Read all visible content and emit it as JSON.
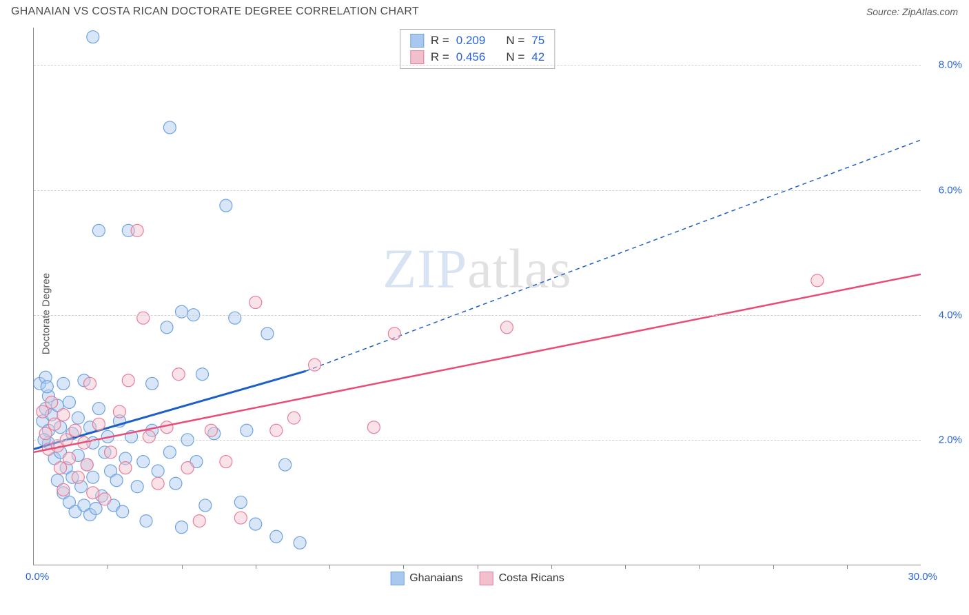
{
  "title": "GHANAIAN VS COSTA RICAN DOCTORATE DEGREE CORRELATION CHART",
  "source_label": "Source: ZipAtlas.com",
  "y_axis_label": "Doctorate Degree",
  "watermark": {
    "part1": "ZIP",
    "part2": "atlas"
  },
  "chart": {
    "type": "scatter",
    "xlim": [
      0,
      30
    ],
    "ylim": [
      0,
      8.6
    ],
    "x_label_start": "0.0%",
    "x_label_end": "30.0%",
    "x_ticks_count": 12,
    "y_gridlines": [
      {
        "value": 2.0,
        "label": "2.0%"
      },
      {
        "value": 4.0,
        "label": "4.0%"
      },
      {
        "value": 6.0,
        "label": "6.0%"
      },
      {
        "value": 8.0,
        "label": "8.0%"
      }
    ],
    "background_color": "#ffffff",
    "grid_color": "#d0d0d0",
    "axis_color": "#888888",
    "tick_label_color": "#2962d9",
    "marker_radius": 9,
    "marker_stroke_width": 1.2,
    "marker_fill_opacity": 0.45,
    "series": [
      {
        "name": "Ghanaians",
        "fill": "#a9c8ef",
        "stroke": "#6da3e0",
        "points": [
          [
            0.2,
            2.9
          ],
          [
            0.3,
            2.3
          ],
          [
            0.4,
            2.5
          ],
          [
            0.4,
            3.0
          ],
          [
            0.5,
            1.95
          ],
          [
            0.5,
            2.7
          ],
          [
            0.5,
            2.15
          ],
          [
            0.6,
            2.4
          ],
          [
            0.7,
            1.7
          ],
          [
            0.8,
            2.55
          ],
          [
            0.8,
            1.35
          ],
          [
            0.9,
            2.2
          ],
          [
            0.9,
            1.8
          ],
          [
            1.0,
            2.9
          ],
          [
            1.0,
            1.15
          ],
          [
            1.1,
            1.55
          ],
          [
            1.2,
            2.6
          ],
          [
            1.2,
            1.0
          ],
          [
            1.3,
            2.1
          ],
          [
            1.3,
            1.4
          ],
          [
            1.4,
            0.85
          ],
          [
            1.5,
            2.35
          ],
          [
            1.5,
            1.75
          ],
          [
            1.6,
            1.25
          ],
          [
            1.7,
            2.95
          ],
          [
            1.7,
            0.95
          ],
          [
            1.8,
            1.6
          ],
          [
            1.9,
            2.2
          ],
          [
            1.9,
            0.8
          ],
          [
            2.0,
            1.95
          ],
          [
            2.0,
            1.4
          ],
          [
            2.1,
            0.9
          ],
          [
            2.2,
            2.5
          ],
          [
            2.3,
            1.1
          ],
          [
            2.4,
            1.8
          ],
          [
            2.5,
            2.05
          ],
          [
            2.6,
            1.5
          ],
          [
            2.7,
            0.95
          ],
          [
            2.8,
            1.35
          ],
          [
            2.9,
            2.3
          ],
          [
            3.0,
            0.85
          ],
          [
            3.1,
            1.7
          ],
          [
            3.3,
            2.05
          ],
          [
            3.5,
            1.25
          ],
          [
            3.7,
            1.65
          ],
          [
            3.8,
            0.7
          ],
          [
            4.0,
            2.9
          ],
          [
            4.0,
            2.15
          ],
          [
            4.2,
            1.5
          ],
          [
            4.5,
            3.8
          ],
          [
            4.6,
            1.8
          ],
          [
            4.8,
            1.3
          ],
          [
            5.0,
            0.6
          ],
          [
            5.2,
            2.0
          ],
          [
            5.4,
            4.0
          ],
          [
            5.5,
            1.65
          ],
          [
            5.7,
            3.05
          ],
          [
            5.8,
            0.95
          ],
          [
            6.1,
            2.1
          ],
          [
            6.5,
            5.75
          ],
          [
            6.8,
            3.95
          ],
          [
            7.0,
            1.0
          ],
          [
            7.2,
            2.15
          ],
          [
            7.5,
            0.65
          ],
          [
            7.9,
            3.7
          ],
          [
            8.2,
            0.45
          ],
          [
            8.5,
            1.6
          ],
          [
            9.0,
            0.35
          ],
          [
            2.2,
            5.35
          ],
          [
            2.0,
            8.45
          ],
          [
            3.2,
            5.35
          ],
          [
            4.6,
            7.0
          ],
          [
            5.0,
            4.05
          ],
          [
            0.35,
            2.0
          ],
          [
            0.45,
            2.85
          ]
        ],
        "trend": {
          "solid": {
            "x1": 0,
            "y1": 1.85,
            "x2": 9.2,
            "y2": 3.1
          },
          "dashed": {
            "x1": 9.2,
            "y1": 3.1,
            "x2": 30,
            "y2": 6.8
          },
          "color": "#1e5fc4",
          "width_solid": 3,
          "width_dashed": 1.5,
          "dash": "6,5"
        }
      },
      {
        "name": "Costa Ricans",
        "fill": "#f2c0cd",
        "stroke": "#e87d9a",
        "points": [
          [
            0.3,
            2.45
          ],
          [
            0.4,
            2.1
          ],
          [
            0.5,
            1.85
          ],
          [
            0.6,
            2.6
          ],
          [
            0.7,
            2.25
          ],
          [
            0.8,
            1.9
          ],
          [
            0.9,
            1.55
          ],
          [
            1.0,
            2.4
          ],
          [
            1.0,
            1.2
          ],
          [
            1.1,
            2.0
          ],
          [
            1.2,
            1.7
          ],
          [
            1.4,
            2.15
          ],
          [
            1.5,
            1.4
          ],
          [
            1.7,
            1.95
          ],
          [
            1.8,
            1.6
          ],
          [
            1.9,
            2.9
          ],
          [
            2.0,
            1.15
          ],
          [
            2.2,
            2.25
          ],
          [
            2.4,
            1.05
          ],
          [
            2.6,
            1.8
          ],
          [
            2.9,
            2.45
          ],
          [
            3.1,
            1.55
          ],
          [
            3.2,
            2.95
          ],
          [
            3.5,
            5.35
          ],
          [
            3.7,
            3.95
          ],
          [
            3.9,
            2.05
          ],
          [
            4.2,
            1.3
          ],
          [
            4.5,
            2.2
          ],
          [
            4.9,
            3.05
          ],
          [
            5.2,
            1.55
          ],
          [
            5.6,
            0.7
          ],
          [
            6.0,
            2.15
          ],
          [
            6.5,
            1.65
          ],
          [
            7.0,
            0.75
          ],
          [
            7.5,
            4.2
          ],
          [
            8.2,
            2.15
          ],
          [
            8.8,
            2.35
          ],
          [
            9.5,
            3.2
          ],
          [
            11.5,
            2.2
          ],
          [
            12.2,
            3.7
          ],
          [
            16.0,
            3.8
          ],
          [
            26.5,
            4.55
          ]
        ],
        "trend": {
          "solid": {
            "x1": 0,
            "y1": 1.8,
            "x2": 30,
            "y2": 4.65
          },
          "color": "#e84c77",
          "width_solid": 2.5
        }
      }
    ]
  },
  "stats_box": {
    "rows": [
      {
        "swatch_fill": "#a9c8ef",
        "swatch_stroke": "#6da3e0",
        "r_label": "R =",
        "r_value": "0.209",
        "n_label": "N =",
        "n_value": "75"
      },
      {
        "swatch_fill": "#f2c0cd",
        "swatch_stroke": "#e87d9a",
        "r_label": "R =",
        "r_value": "0.456",
        "n_label": "N =",
        "n_value": "42"
      }
    ]
  },
  "bottom_legend": [
    {
      "swatch_fill": "#a9c8ef",
      "swatch_stroke": "#6da3e0",
      "label": "Ghanaians"
    },
    {
      "swatch_fill": "#f2c0cd",
      "swatch_stroke": "#e87d9a",
      "label": "Costa Ricans"
    }
  ]
}
